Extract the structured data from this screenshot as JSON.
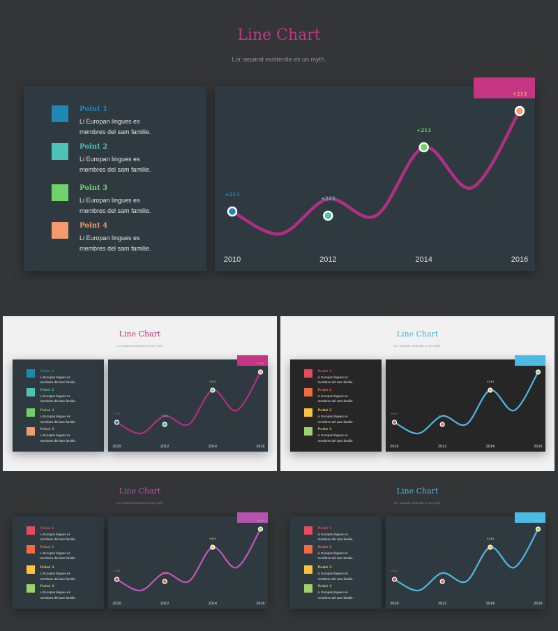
{
  "slides": [
    {
      "theme": "main",
      "bg": "#333537",
      "title": "Line Chart",
      "title_color": "#c43584",
      "subtitle": "Lor separat existentie es un myth.",
      "subtitle_color": "#8e9194",
      "legend_bg": "#2f3a40",
      "chart_bg": "#2f3a40",
      "line_color": "#b12e82",
      "tab_color": "#c43584",
      "legend_text_color": "#e6e6e6",
      "axis_text_color": "#e0e0e0",
      "legend": [
        {
          "title": "Point 1",
          "line1": "Li Europan lingues es",
          "line2": "membres del sam familie.",
          "color": "#1e88b4"
        },
        {
          "title": "Point 2",
          "line1": "Li Europan lingues es",
          "line2": "membres del sam familie.",
          "color": "#4cc3b4"
        },
        {
          "title": "Point 3",
          "line1": "Li Europan lingues es",
          "line2": "membres del sam familie.",
          "color": "#6ed46a"
        },
        {
          "title": "Point 4",
          "line1": "Li Europan lingues es",
          "line2": "membres del sam familie.",
          "color": "#f59a6c"
        }
      ],
      "point_labels": [
        "+213",
        "+213",
        "+213",
        "+213"
      ]
    },
    {
      "theme": "light",
      "bg": "#f1f1f1",
      "title": "Line Chart",
      "title_color": "#c43584",
      "subtitle": "Lor separat existentie es un myth.",
      "subtitle_color": "#a0a0a0",
      "legend_bg": "#2f3a40",
      "chart_bg": "#2f3a40",
      "line_color": "#b12e82",
      "tab_color": "#c43584",
      "legend_text_color": "#e6e6e6",
      "axis_text_color": "#e0e0e0",
      "legend": [
        {
          "title": "Point 1",
          "line1": "Li Europan lingues es",
          "line2": "membres del sam familie.",
          "color": "#1e88b4"
        },
        {
          "title": "Point 2",
          "line1": "Li Europan lingues es",
          "line2": "membres del sam familie.",
          "color": "#4cc3b4"
        },
        {
          "title": "Point 3",
          "line1": "Li Europan lingues es",
          "line2": "membres del sam familie.",
          "color": "#6ed46a"
        },
        {
          "title": "Point 4",
          "line1": "Li Europan lingues es",
          "line2": "membres del sam familie.",
          "color": "#f59a6c"
        }
      ],
      "point_labels": [
        "+213",
        "+213",
        "+213",
        "+213"
      ]
    },
    {
      "theme": "light-dark",
      "bg": "#f1f1f1",
      "title": "Line Chart",
      "title_color": "#49b5d9",
      "subtitle": "Lor separat existentie es un myth.",
      "subtitle_color": "#a0a0a0",
      "legend_bg": "#262626",
      "chart_bg": "#262626",
      "line_color": "#4ab9e3",
      "tab_color": "#4ab9e3",
      "legend_text_color": "#e6e6e6",
      "axis_text_color": "#e0e0e0",
      "legend": [
        {
          "title": "Point 1",
          "line1": "Li Europan lingues es",
          "line2": "membres del sam familie.",
          "color": "#e54b5a"
        },
        {
          "title": "Point 2",
          "line1": "Li Europan lingues es",
          "line2": "membres del sam familie.",
          "color": "#f26a45"
        },
        {
          "title": "Point 3",
          "line1": "Li Europan lingues es",
          "line2": "membres del sam familie.",
          "color": "#fbc341"
        },
        {
          "title": "Point 4",
          "line1": "Li Europan lingues es",
          "line2": "membres del sam familie.",
          "color": "#9fd26a"
        }
      ],
      "point_labels": [
        "+213",
        "+213",
        "+213",
        "+213"
      ]
    },
    {
      "theme": "dark",
      "bg": "#333537",
      "title": "Line Chart",
      "title_color": "#b553b0",
      "subtitle": "Lor separat existentie es un myth.",
      "subtitle_color": "#7f8286",
      "legend_bg": "#2f3a40",
      "chart_bg": "#2f3a40",
      "line_color": "#c255b6",
      "tab_color": "#b553b0",
      "legend_text_color": "#e6e6e6",
      "axis_text_color": "#e0e0e0",
      "legend": [
        {
          "title": "Point 1",
          "line1": "Li Europan lingues es",
          "line2": "membres del sam familie.",
          "color": "#e54b5a"
        },
        {
          "title": "Point 2",
          "line1": "Li Europan lingues es",
          "line2": "membres del sam familie.",
          "color": "#f26a45"
        },
        {
          "title": "Point 3",
          "line1": "Li Europan lingues es",
          "line2": "membres del sam familie.",
          "color": "#fbc341"
        },
        {
          "title": "Point 4",
          "line1": "Li Europan lingues es",
          "line2": "membres del sam familie.",
          "color": "#9fd26a"
        }
      ],
      "point_labels": [
        "+213",
        "+213",
        "+213",
        "+213"
      ]
    },
    {
      "theme": "dark",
      "bg": "#333537",
      "title": "Line Chart",
      "title_color": "#49b5d9",
      "subtitle": "Lor separat existentie es un myth.",
      "subtitle_color": "#7f8286",
      "legend_bg": "#2f3a40",
      "chart_bg": "#2f3a40",
      "line_color": "#4ab9e3",
      "tab_color": "#4ab9e3",
      "legend_text_color": "#e6e6e6",
      "axis_text_color": "#e0e0e0",
      "legend": [
        {
          "title": "Point 1",
          "line1": "Li Europan lingues es",
          "line2": "membres del sam familie.",
          "color": "#e54b5a"
        },
        {
          "title": "Point 2",
          "line1": "Li Europan lingues es",
          "line2": "membres del sam familie.",
          "color": "#f26a45"
        },
        {
          "title": "Point 3",
          "line1": "Li Europan lingues es",
          "line2": "membres del sam familie.",
          "color": "#fbc341"
        },
        {
          "title": "Point 4",
          "line1": "Li Europan lingues es",
          "line2": "membres del sam familie.",
          "color": "#9fd26a"
        }
      ],
      "point_labels": [
        "+213",
        "+213",
        "+213",
        "+213"
      ]
    }
  ],
  "chart_data": {
    "type": "line",
    "categories": [
      "2010",
      "2012",
      "2014",
      "2016"
    ],
    "curve_values": [
      1.0,
      0.2,
      1.45,
      0.85,
      3.3,
      1.85,
      4.6
    ],
    "points": [
      {
        "x": "2010",
        "y": 1.0,
        "label": "+213"
      },
      {
        "x": "2012",
        "y": 0.85,
        "label": "+213"
      },
      {
        "x": "2014",
        "y": 3.3,
        "label": "+213"
      },
      {
        "x": "2016",
        "y": 4.6,
        "label": "+213"
      }
    ],
    "ylim": [
      0,
      5
    ]
  }
}
